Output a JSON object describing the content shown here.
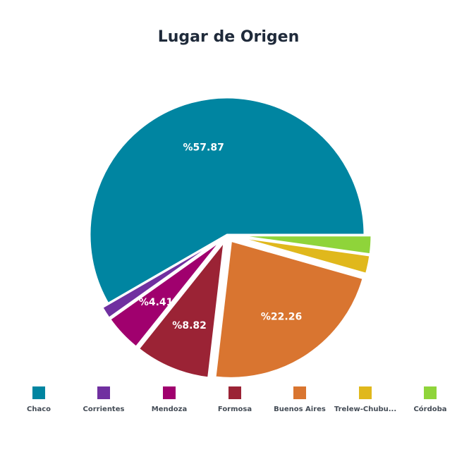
{
  "chart_data": {
    "type": "pie",
    "title": "Lugar de Origen",
    "series": [
      {
        "name": "Chaco",
        "value": 57.87,
        "color": "#0085a1",
        "label": "%57.87"
      },
      {
        "name": "Corrientes",
        "value": 1.47,
        "color": "#7030a0",
        "label": ""
      },
      {
        "name": "Mendoza",
        "value": 4.41,
        "color": "#a0006e",
        "label": "%4.41"
      },
      {
        "name": "Formosa",
        "value": 8.82,
        "color": "#9b2335",
        "label": "%8.82"
      },
      {
        "name": "Buenos Aires",
        "value": 22.26,
        "color": "#d97530",
        "label": "%22.26"
      },
      {
        "name": "Trelew-Chubu...",
        "value": 2.17,
        "color": "#e0b81c",
        "label": ""
      },
      {
        "name": "Córdoba",
        "value": 2.2,
        "color": "#8fd43a",
        "label": ""
      }
    ],
    "legend_position": "bottom"
  }
}
